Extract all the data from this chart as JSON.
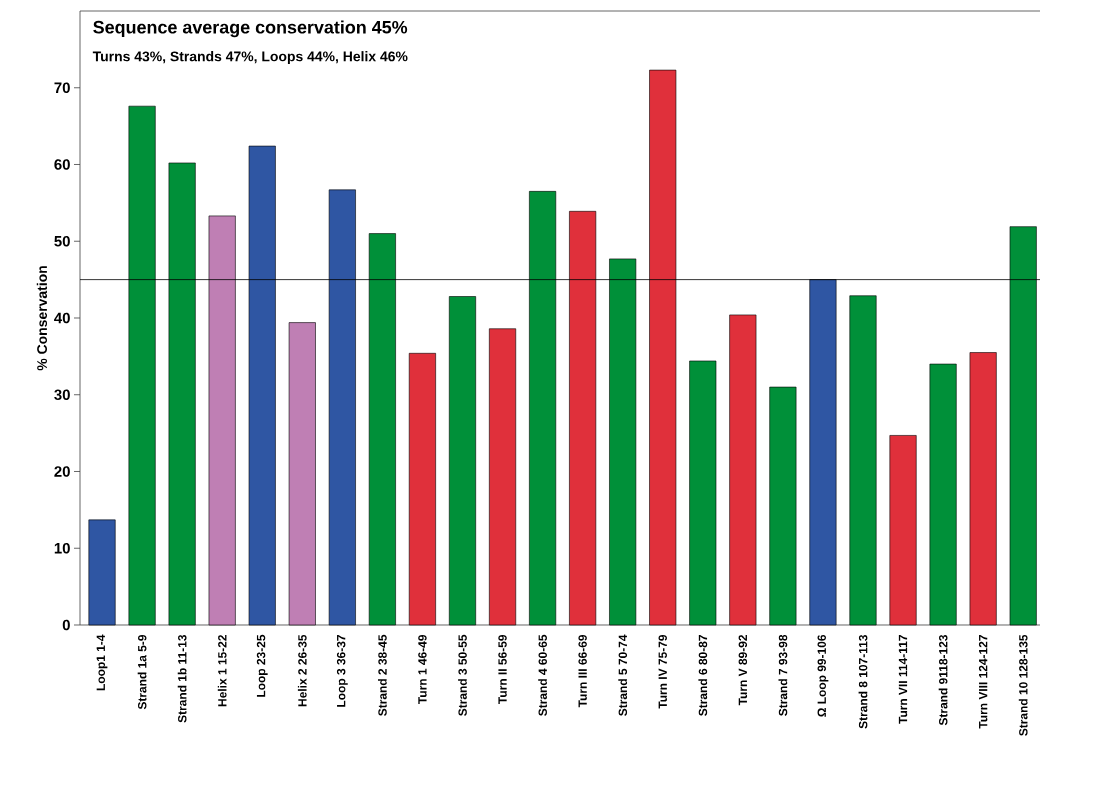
{
  "chart_data": {
    "type": "bar",
    "title": "Sequence average conservation 45%",
    "subtitle": "Turns 43%, Strands 47%, Loops 44%, Helix 46%",
    "ylabel": "% Conservation",
    "categories": [
      "Loop1 1-4",
      "Strand 1a 5-9",
      "Strand 1b 11-13",
      "Helix 1 15-22",
      "Loop 23-25",
      "Helix 2 26-35",
      "Loop 3 36-37",
      "Strand 2 38-45",
      "Turn 1 46-49",
      "Strand 3 50-55",
      "Turn II 56-59",
      "Strand 4 60-65",
      "Turn III 66-69",
      "Strand 5 70-74",
      "Turn IV 75-79",
      "Strand 6 80-87",
      "Turn V 89-92",
      "Strand 7 93-98",
      "Ω Loop 99-106",
      "Strand 8 107-113",
      "Turn VII 114-117",
      "Strand 9118-123",
      "Turn VIII 124-127",
      "Strand 10 128-135"
    ],
    "values": [
      13.7,
      67.6,
      60.2,
      53.3,
      62.4,
      39.4,
      56.7,
      51.0,
      35.4,
      42.8,
      38.6,
      56.5,
      53.9,
      47.7,
      72.3,
      34.4,
      40.4,
      31.0,
      45.0,
      42.9,
      24.7,
      34.0,
      35.5,
      51.9
    ],
    "colors": [
      "#2f56a3",
      "#009039",
      "#009039",
      "#bf7fb4",
      "#2f56a3",
      "#bf7fb4",
      "#2f56a3",
      "#009039",
      "#e0303b",
      "#009039",
      "#e0303b",
      "#009039",
      "#e0303b",
      "#009039",
      "#e0303b",
      "#009039",
      "#e0303b",
      "#009039",
      "#2f56a3",
      "#009039",
      "#e0303b",
      "#009039",
      "#e0303b",
      "#009039"
    ],
    "ylim": [
      0,
      80
    ],
    "yticks": [
      0,
      10,
      20,
      30,
      40,
      50,
      60,
      70
    ],
    "ref_lines": [
      {
        "axis": "y",
        "value": 45,
        "color": "#000000"
      }
    ]
  }
}
